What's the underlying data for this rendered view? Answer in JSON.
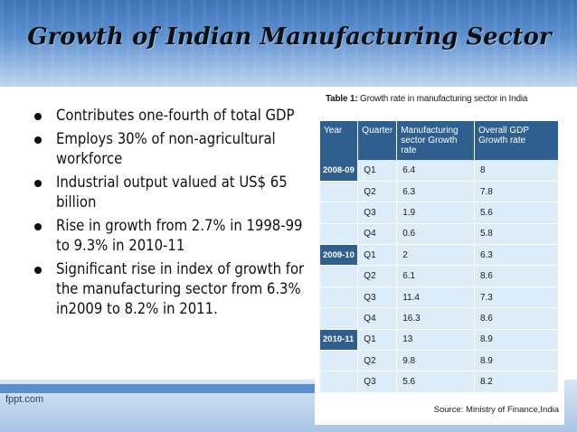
{
  "slide": {
    "title": "Growth of Indian Manufacturing Sector",
    "bullets": [
      "Contributes one-fourth of total GDP",
      "Employs 30% of non-agricultural workforce",
      "Industrial output valued at US$ 65 billion",
      "Rise in growth from 2.7% in 1998-99 to 9.3% in 2010-11",
      "Significant rise in index of growth for the manufacturing sector from 6.3% in2009 to 8.2% in 2011."
    ],
    "footer": "fppt.com"
  },
  "table": {
    "caption_prefix": "Table 1:",
    "caption_text": "Growth rate in manufacturing sector in India",
    "headers": [
      "Year",
      "Quarter",
      "Manufacturing sector Growth rate",
      "Overall GDP Growth rate"
    ],
    "rows": [
      {
        "year": "2008-09",
        "quarter": "Q1",
        "mfg": "6.4",
        "gdp": "8"
      },
      {
        "year": "",
        "quarter": "Q2",
        "mfg": "6.3",
        "gdp": "7.8"
      },
      {
        "year": "",
        "quarter": "Q3",
        "mfg": "1.9",
        "gdp": "5.6"
      },
      {
        "year": "",
        "quarter": "Q4",
        "mfg": "0.6",
        "gdp": "5.8"
      },
      {
        "year": "2009-10",
        "quarter": "Q1",
        "mfg": "2",
        "gdp": "6.3"
      },
      {
        "year": "",
        "quarter": "Q2",
        "mfg": "6.1",
        "gdp": "8.6"
      },
      {
        "year": "",
        "quarter": "Q3",
        "mfg": "11.4",
        "gdp": "7.3"
      },
      {
        "year": "",
        "quarter": "Q4",
        "mfg": "16.3",
        "gdp": "8.6"
      },
      {
        "year": "2010-11",
        "quarter": "Q1",
        "mfg": "13",
        "gdp": "8.9"
      },
      {
        "year": "",
        "quarter": "Q2",
        "mfg": "9.8",
        "gdp": "8.9"
      },
      {
        "year": "",
        "quarter": "Q3",
        "mfg": "5.6",
        "gdp": "8.2"
      }
    ],
    "source": "Source: Ministry of Finance,India"
  },
  "colors": {
    "header_blue": "#2e5f8e",
    "cell_light_blue": "#dcecf8",
    "band_blue": "#3f73b6"
  }
}
